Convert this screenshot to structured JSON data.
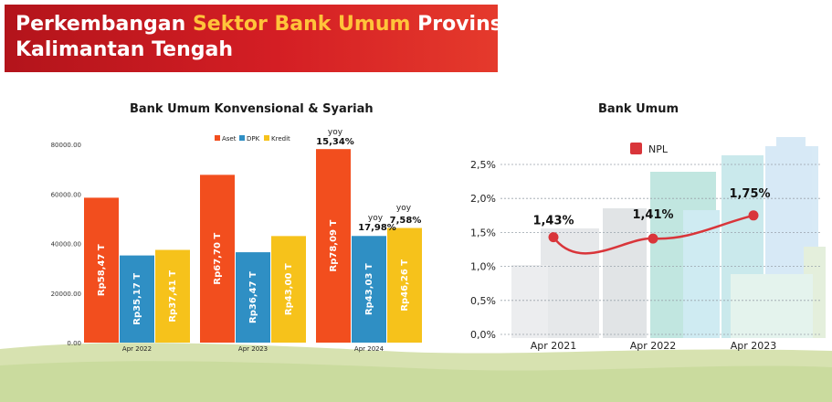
{
  "header": {
    "title_part1": "Perkembangan ",
    "title_highlight": "Sektor Bank Umum",
    "title_part2": " Provinsi",
    "title_line2": "Kalimantan Tengah"
  },
  "colors": {
    "aset": "#f24e1e",
    "dpk": "#2f8fc4",
    "kredit": "#f6c21b",
    "npl": "#d9353a",
    "banner": "#c8191f",
    "highlight": "#ffc43a"
  },
  "chart_data": [
    {
      "type": "bar",
      "title": "Bank Umum Konvensional & Syariah",
      "categories": [
        "Apr 2022",
        "Apr 2023",
        "Apr 2024"
      ],
      "series": [
        {
          "name": "Aset",
          "values": [
            58470,
            67700,
            78090
          ],
          "labels": [
            "Rp58,47 T",
            "Rp67,70 T",
            "Rp78,09 T"
          ]
        },
        {
          "name": "DPK",
          "values": [
            35170,
            36470,
            43030
          ],
          "labels": [
            "Rp35,17 T",
            "Rp36,47 T",
            "Rp43,03 T"
          ]
        },
        {
          "name": "Kredit",
          "values": [
            37410,
            43000,
            46260
          ],
          "labels": [
            "Rp37,41 T",
            "Rp43,00 T",
            "Rp46,26 T"
          ]
        }
      ],
      "ylim": [
        0,
        80000
      ],
      "yticks": [
        "0.00",
        "20000.00",
        "40000.00",
        "60000.00",
        "80000.00"
      ],
      "yticks_values": [
        0,
        20000,
        40000,
        60000,
        80000
      ],
      "legend_position": "top-right",
      "annotations": [
        {
          "series": "Aset",
          "category": "Apr 2024",
          "prefix": "yoy",
          "value": "15,34%"
        },
        {
          "series": "DPK",
          "category": "Apr 2024",
          "prefix": "yoy",
          "value": "17,98%"
        },
        {
          "series": "Kredit",
          "category": "Apr 2024",
          "prefix": "yoy",
          "value": "7,58%"
        }
      ]
    },
    {
      "type": "line",
      "title": "Bank Umum",
      "x": [
        "Apr 2021",
        "Apr 2022",
        "Apr 2023"
      ],
      "series": [
        {
          "name": "NPL",
          "values": [
            1.43,
            1.41,
            1.75
          ],
          "labels": [
            "1,43%",
            "1,41%",
            "1,75%"
          ]
        }
      ],
      "ylim": [
        0,
        2.5
      ],
      "yticks": [
        "0,0%",
        "0,5%",
        "1,0%",
        "1,5%",
        "2,0%",
        "2,5%"
      ],
      "yticks_values": [
        0,
        0.5,
        1.0,
        1.5,
        2.0,
        2.5
      ],
      "grid": true,
      "legend_position": "top"
    }
  ]
}
